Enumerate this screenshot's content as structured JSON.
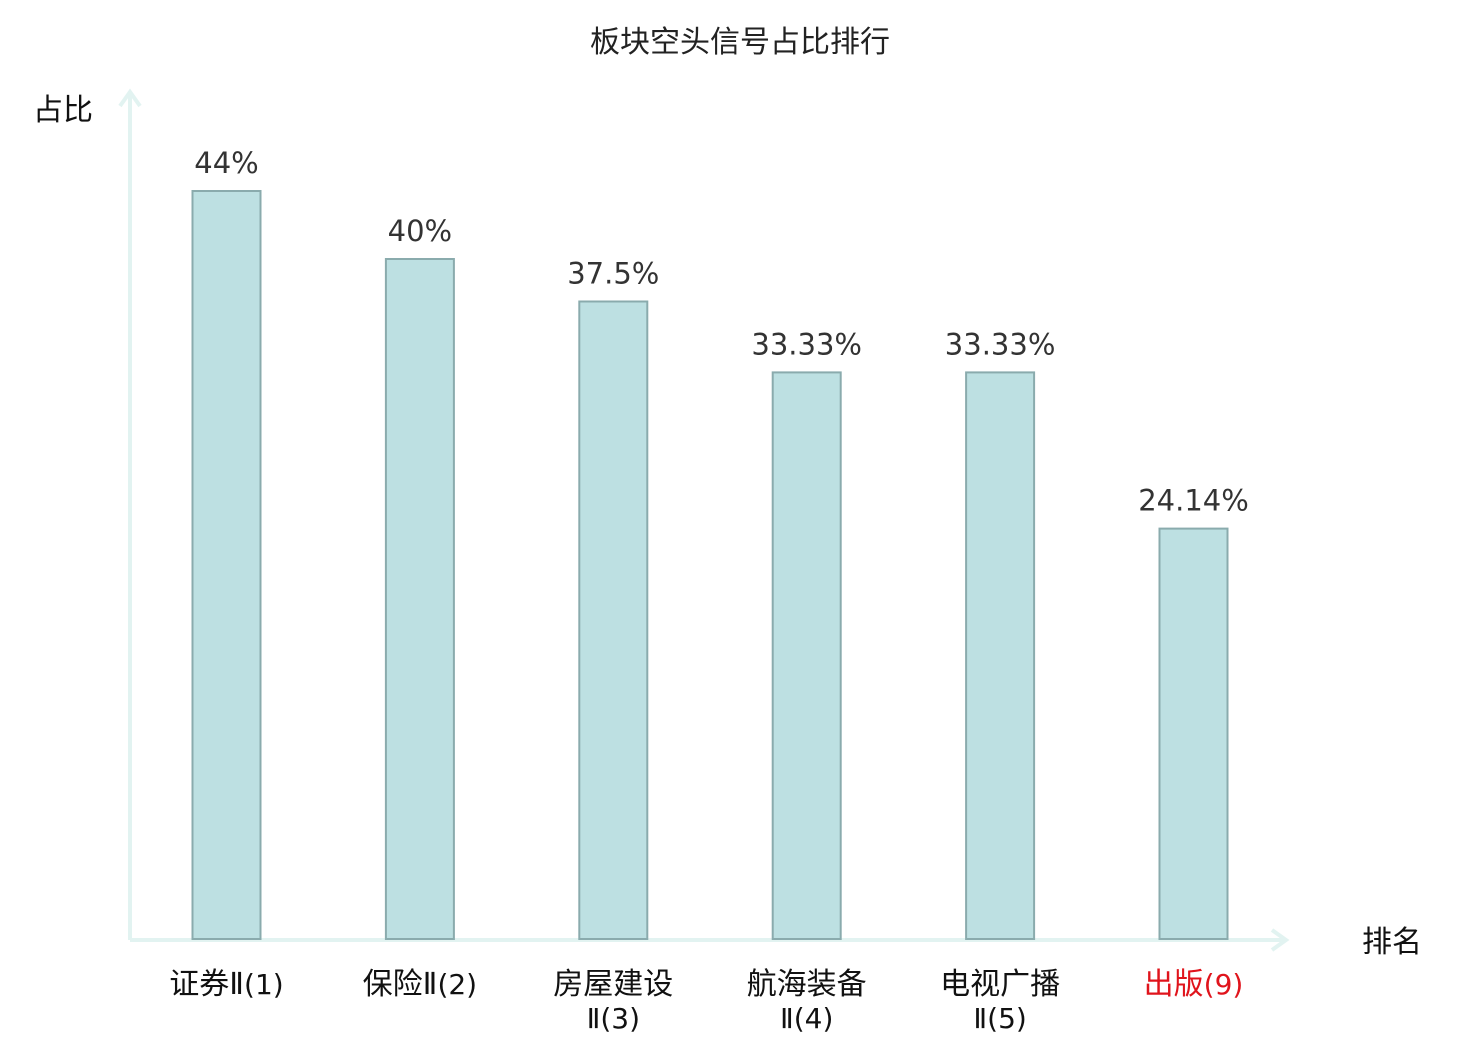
{
  "chart_data": {
    "type": "bar",
    "title": "板块空头信号占比排行",
    "xlabel": "排名",
    "ylabel": "占比",
    "ylim": [
      0,
      50
    ],
    "grid": false,
    "categories": [
      {
        "name": "证券Ⅱ",
        "rank": "(1)",
        "highlight": false
      },
      {
        "name": "保险Ⅱ",
        "rank": "(2)",
        "highlight": false
      },
      {
        "name": "房屋建设",
        "rank": "Ⅱ(3)",
        "highlight": false
      },
      {
        "name": "航海装备",
        "rank": "Ⅱ(4)",
        "highlight": false
      },
      {
        "name": "电视广播",
        "rank": "Ⅱ(5)",
        "highlight": false
      },
      {
        "name": "出版",
        "rank": "(9)",
        "highlight": true
      }
    ],
    "values": [
      44,
      40,
      37.5,
      33.33,
      33.33,
      24.14
    ],
    "value_labels": [
      "44%",
      "40%",
      "37.5%",
      "33.33%",
      "33.33%",
      "24.14%"
    ],
    "colors": {
      "bar_fill": "#bde0e2",
      "bar_stroke": "#8aabad",
      "axis": "#e2f3f1",
      "label_text": "#111111",
      "highlight_text": "#e0141c",
      "value_text": "#333333"
    }
  }
}
